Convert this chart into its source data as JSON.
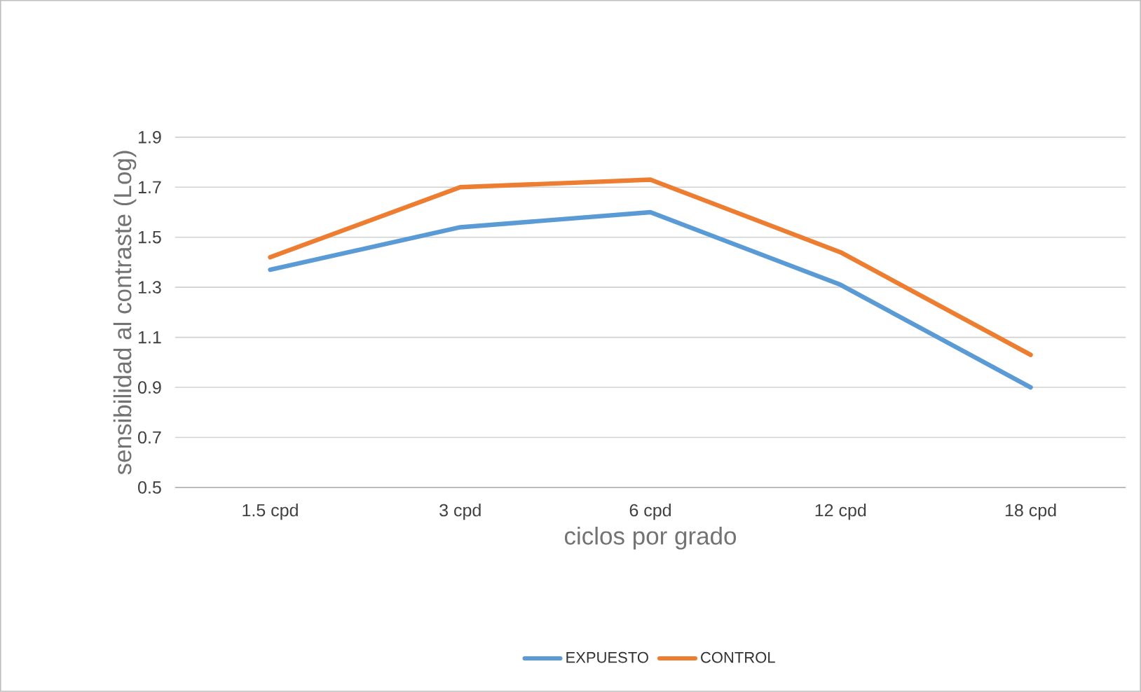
{
  "chart_data": {
    "type": "line",
    "xlabel": "ciclos por grado",
    "ylabel": "sensibilidad al contraste (Log)",
    "categories": [
      "1.5 cpd",
      "3 cpd",
      "6 cpd",
      "12 cpd",
      "18 cpd"
    ],
    "series": [
      {
        "name": "EXPUESTO",
        "color": "#5b9bd5",
        "values": [
          1.37,
          1.54,
          1.6,
          1.31,
          0.9
        ]
      },
      {
        "name": "CONTROL",
        "color": "#ed7d31",
        "values": [
          1.42,
          1.7,
          1.73,
          1.44,
          1.03
        ]
      }
    ],
    "ylim": [
      0.5,
      1.9
    ],
    "yticks": [
      0.5,
      0.7,
      0.9,
      1.1,
      1.3,
      1.5,
      1.7,
      1.9
    ],
    "grid": "y",
    "legend": "bottom"
  }
}
